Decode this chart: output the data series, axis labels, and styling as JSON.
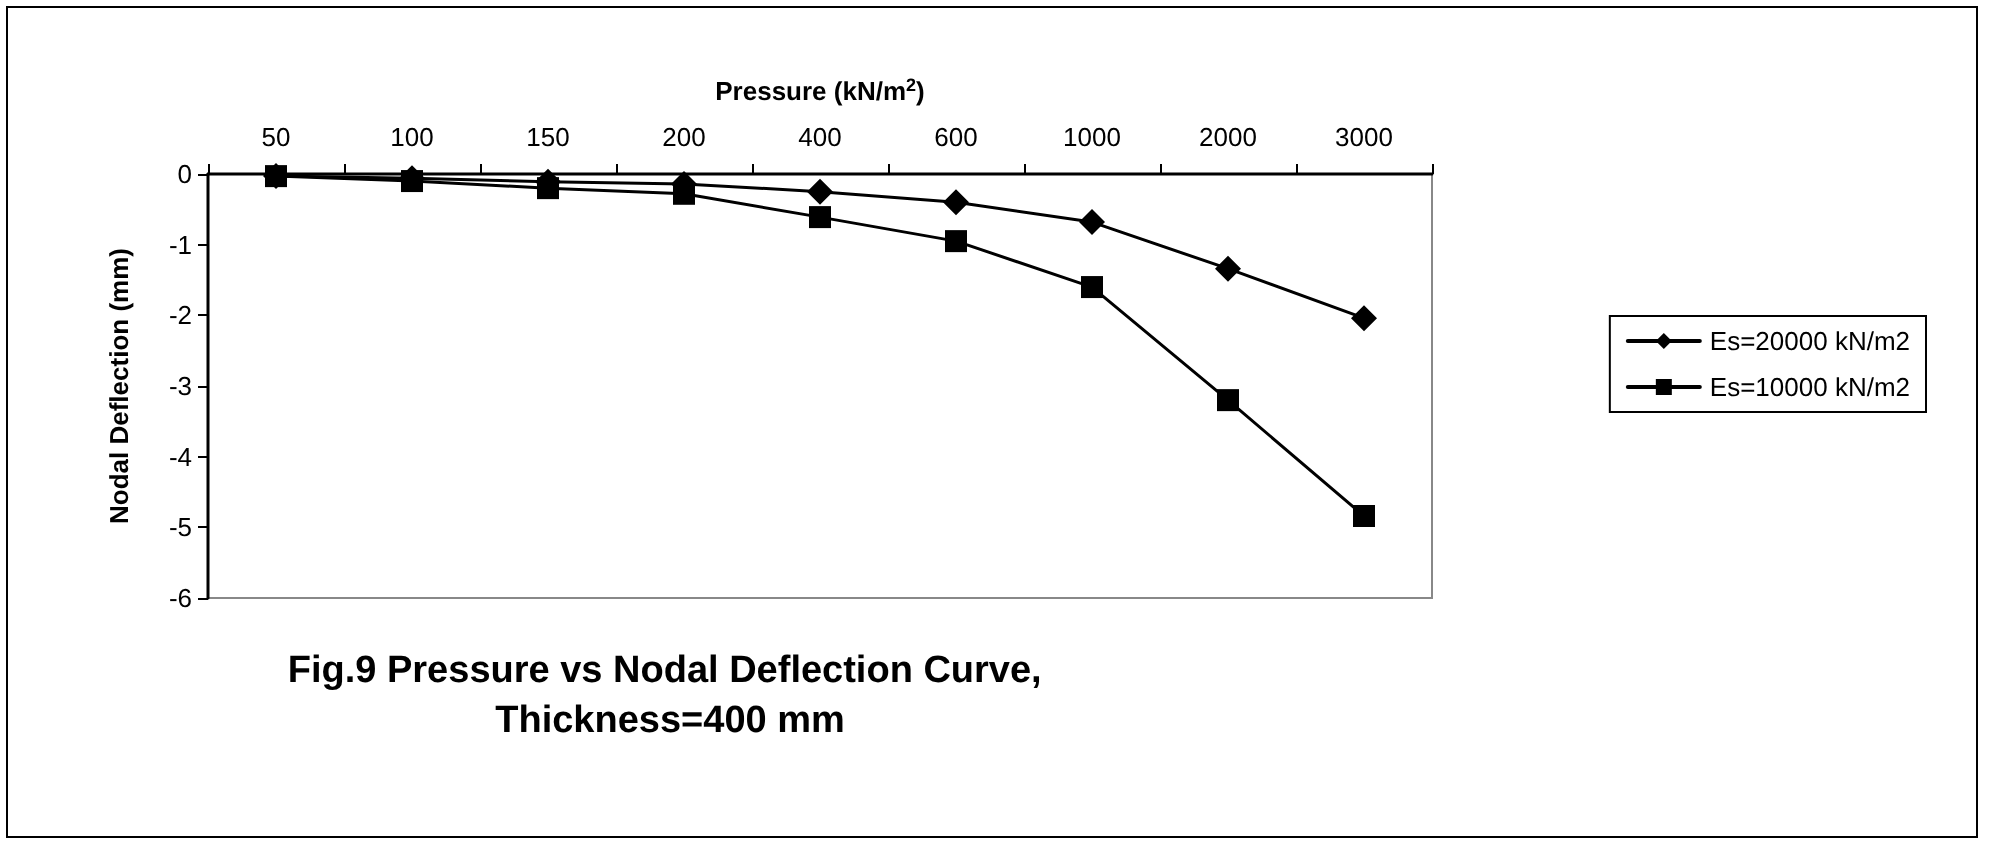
{
  "chart_data": {
    "type": "line",
    "title": "Fig.9 Pressure vs Nodal Deflection Curve, Thickness=400 mm",
    "xlabel": "Pressure (kN/m$^{2}$)",
    "ylabel": "Nodal Deflection (mm)",
    "categories": [
      "50",
      "100",
      "150",
      "200",
      "400",
      "600",
      "1000",
      "2000",
      "3000"
    ],
    "series": [
      {
        "name": "Es=20000 kN/m2",
        "color": "#000000",
        "marker": "diamond",
        "values": [
          -0.03,
          -0.06,
          -0.11,
          -0.14,
          -0.25,
          -0.4,
          -0.68,
          -1.34,
          -2.04
        ]
      },
      {
        "name": "Es=10000 kN/m2",
        "color": "#000000",
        "marker": "square",
        "values": [
          -0.03,
          -0.1,
          -0.2,
          -0.28,
          -0.61,
          -0.95,
          -1.6,
          -3.2,
          -4.84
        ]
      }
    ],
    "ylim": [
      -6,
      0
    ],
    "yticks": [
      0,
      -1,
      -2,
      -3,
      -4,
      -5,
      -6
    ],
    "legend": "right"
  }
}
